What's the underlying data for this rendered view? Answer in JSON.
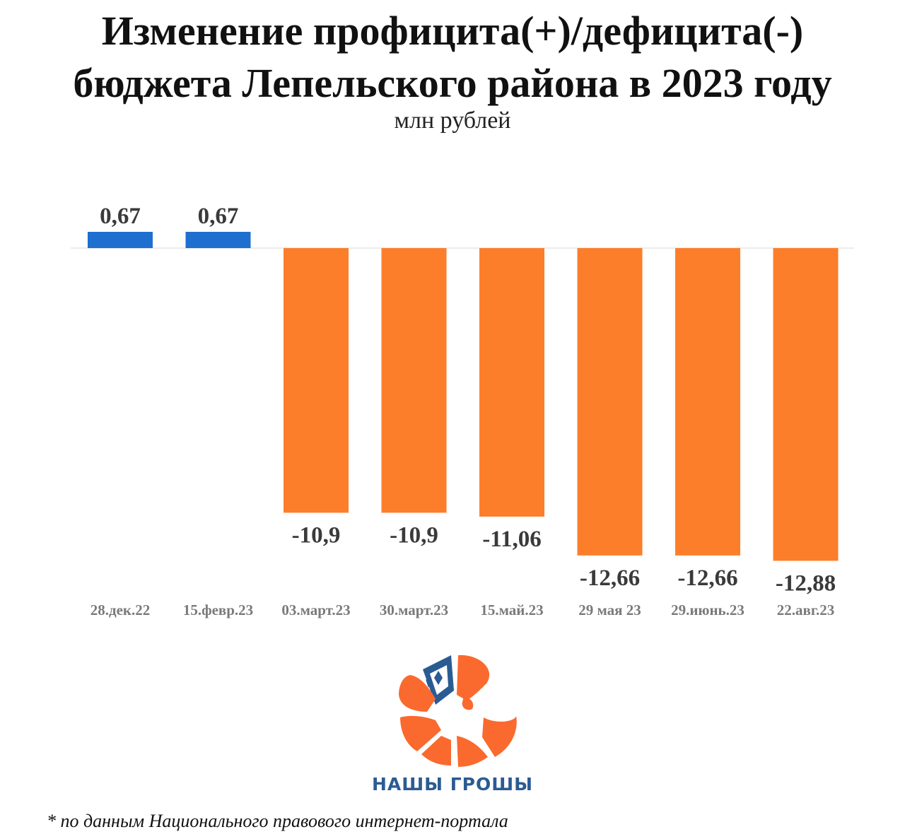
{
  "title_line1": "Изменение профицита(+)/дефицита(-)",
  "title_line2": "бюджета Лепельского района в 2023 году",
  "subtitle": "млн рублей",
  "footnote": "* по данным Национального правового интернет-портала",
  "logo_text": "НАШЫ ГРОШЫ",
  "colors": {
    "positive": "#1f6fcf",
    "negative": "#fd7e2a",
    "label": "#3a3a3a",
    "axis_label": "#7a7a7a",
    "logo_orange": "#fa6a2e",
    "logo_blue": "#2b5b93"
  },
  "chart_data": {
    "type": "bar",
    "title": "Изменение профицита(+)/дефицита(-) бюджета Лепельского района в 2023 году",
    "ylabel": "млн рублей",
    "categories": [
      "28.дек.22",
      "15.февр.23",
      "03.март.23",
      "30.март.23",
      "15.май.23",
      "29 мая 23",
      "29.июнь.23",
      "22.авг.23"
    ],
    "values": [
      0.67,
      0.67,
      -10.9,
      -10.9,
      -11.06,
      -12.66,
      -12.66,
      -12.88
    ],
    "value_labels": [
      "0,67",
      "0,67",
      "-10,9",
      "-10,9",
      "-11,06",
      "-12,66",
      "-12,66",
      "-12,88"
    ],
    "grid": false,
    "legend": "none"
  }
}
